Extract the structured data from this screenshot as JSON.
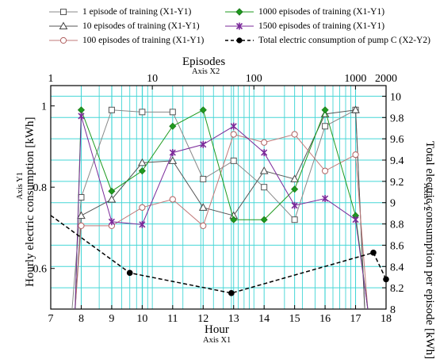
{
  "chart_data": {
    "type": "line",
    "x1": {
      "title": "Hour",
      "subtitle": "Axis X1",
      "range": [
        7,
        18
      ],
      "ticks": [
        7,
        8,
        9,
        10,
        11,
        12,
        13,
        14,
        15,
        16,
        17,
        18
      ]
    },
    "x2": {
      "title": "Episodes",
      "subtitle": "Axis X2",
      "scale": "log",
      "range": [
        1,
        2000
      ],
      "ticks": [
        1,
        10,
        100,
        1000,
        2000
      ],
      "tick_labels": [
        "1",
        "10",
        "100",
        "1000",
        "2000"
      ]
    },
    "y1": {
      "title": "Hourly electric consumption [kWh]",
      "subtitle": "Axis Y1",
      "range": [
        0.5,
        1.05
      ],
      "ticks": [
        0.6,
        0.8,
        1
      ],
      "tick_labels": [
        "0.6",
        "0.8",
        "1"
      ]
    },
    "y2": {
      "title": "Total electric consumption per episode  [kWh]",
      "subtitle": "Axis Y2",
      "range": [
        8.0,
        10.1
      ],
      "ticks": [
        8,
        8.2,
        8.4,
        8.6,
        8.8,
        9,
        9.2,
        9.4,
        9.6,
        9.8,
        10
      ],
      "tick_labels": [
        "8",
        "8.2",
        "8.4",
        "8.6",
        "8.8",
        "9",
        "9.2",
        "9.4",
        "9.6",
        "9.8",
        "10"
      ]
    },
    "grid": true,
    "legend_position": "top",
    "series": [
      {
        "name": "1 episode of training (X1-Y1)",
        "axes": "x1-y1",
        "marker": "open-square",
        "color": "#888888",
        "x": [
          7.7,
          8,
          9,
          10,
          11,
          12,
          13,
          14,
          15,
          16,
          17,
          17.3
        ],
        "y": [
          0.5,
          0.775,
          0.99,
          0.985,
          0.985,
          0.82,
          0.865,
          0.8,
          0.72,
          0.95,
          0.99,
          0.5
        ]
      },
      {
        "name": "10 episodes of training (X1-Y1)",
        "axes": "x1-y1",
        "marker": "open-triangle",
        "color": "#555555",
        "x": [
          7.8,
          8,
          9,
          10,
          11,
          12,
          13,
          14,
          15,
          16,
          17,
          17.3
        ],
        "y": [
          0.5,
          0.73,
          0.77,
          0.86,
          0.865,
          0.75,
          0.73,
          0.84,
          0.82,
          0.98,
          0.99,
          0.5
        ]
      },
      {
        "name": "100 episodes of training (X1-Y1)",
        "axes": "x1-y1",
        "marker": "open-circle",
        "color": "#c07878",
        "x": [
          7.8,
          8,
          9,
          10,
          11,
          12,
          13,
          14,
          15,
          16,
          17,
          17.4
        ],
        "y": [
          0.5,
          0.705,
          0.705,
          0.75,
          0.77,
          0.705,
          0.93,
          0.91,
          0.93,
          0.84,
          0.88,
          0.5
        ]
      },
      {
        "name": "1000 episodes of training (X1-Y1)",
        "axes": "x1-y1",
        "marker": "filled-diamond",
        "color": "#1e9a1e",
        "x": [
          7.8,
          8,
          9,
          10,
          11,
          12,
          13,
          14,
          15,
          16,
          17,
          17.4
        ],
        "y": [
          0.5,
          0.99,
          0.79,
          0.84,
          0.95,
          0.99,
          0.72,
          0.72,
          0.795,
          0.99,
          0.73,
          0.5
        ]
      },
      {
        "name": "1500 episodes of training (X1-Y1)",
        "axes": "x1-y1",
        "marker": "star",
        "color": "#7b2a9a",
        "x": [
          7.8,
          8,
          9,
          10,
          11,
          12,
          13,
          14,
          15,
          16,
          17,
          17.4
        ],
        "y": [
          0.5,
          0.975,
          0.715,
          0.708,
          0.885,
          0.905,
          0.95,
          0.885,
          0.755,
          0.772,
          0.72,
          0.5
        ]
      }
    ],
    "pump_series": {
      "name": "Total electric consumption of pump C (X2-Y2)",
      "axes": "x2-y2",
      "marker": "filled-circle",
      "color": "#000000",
      "line": "dashed",
      "x": [
        1,
        6,
        60,
        1500,
        2000
      ],
      "y": [
        8.88,
        8.34,
        8.15,
        8.53,
        8.28
      ]
    }
  }
}
